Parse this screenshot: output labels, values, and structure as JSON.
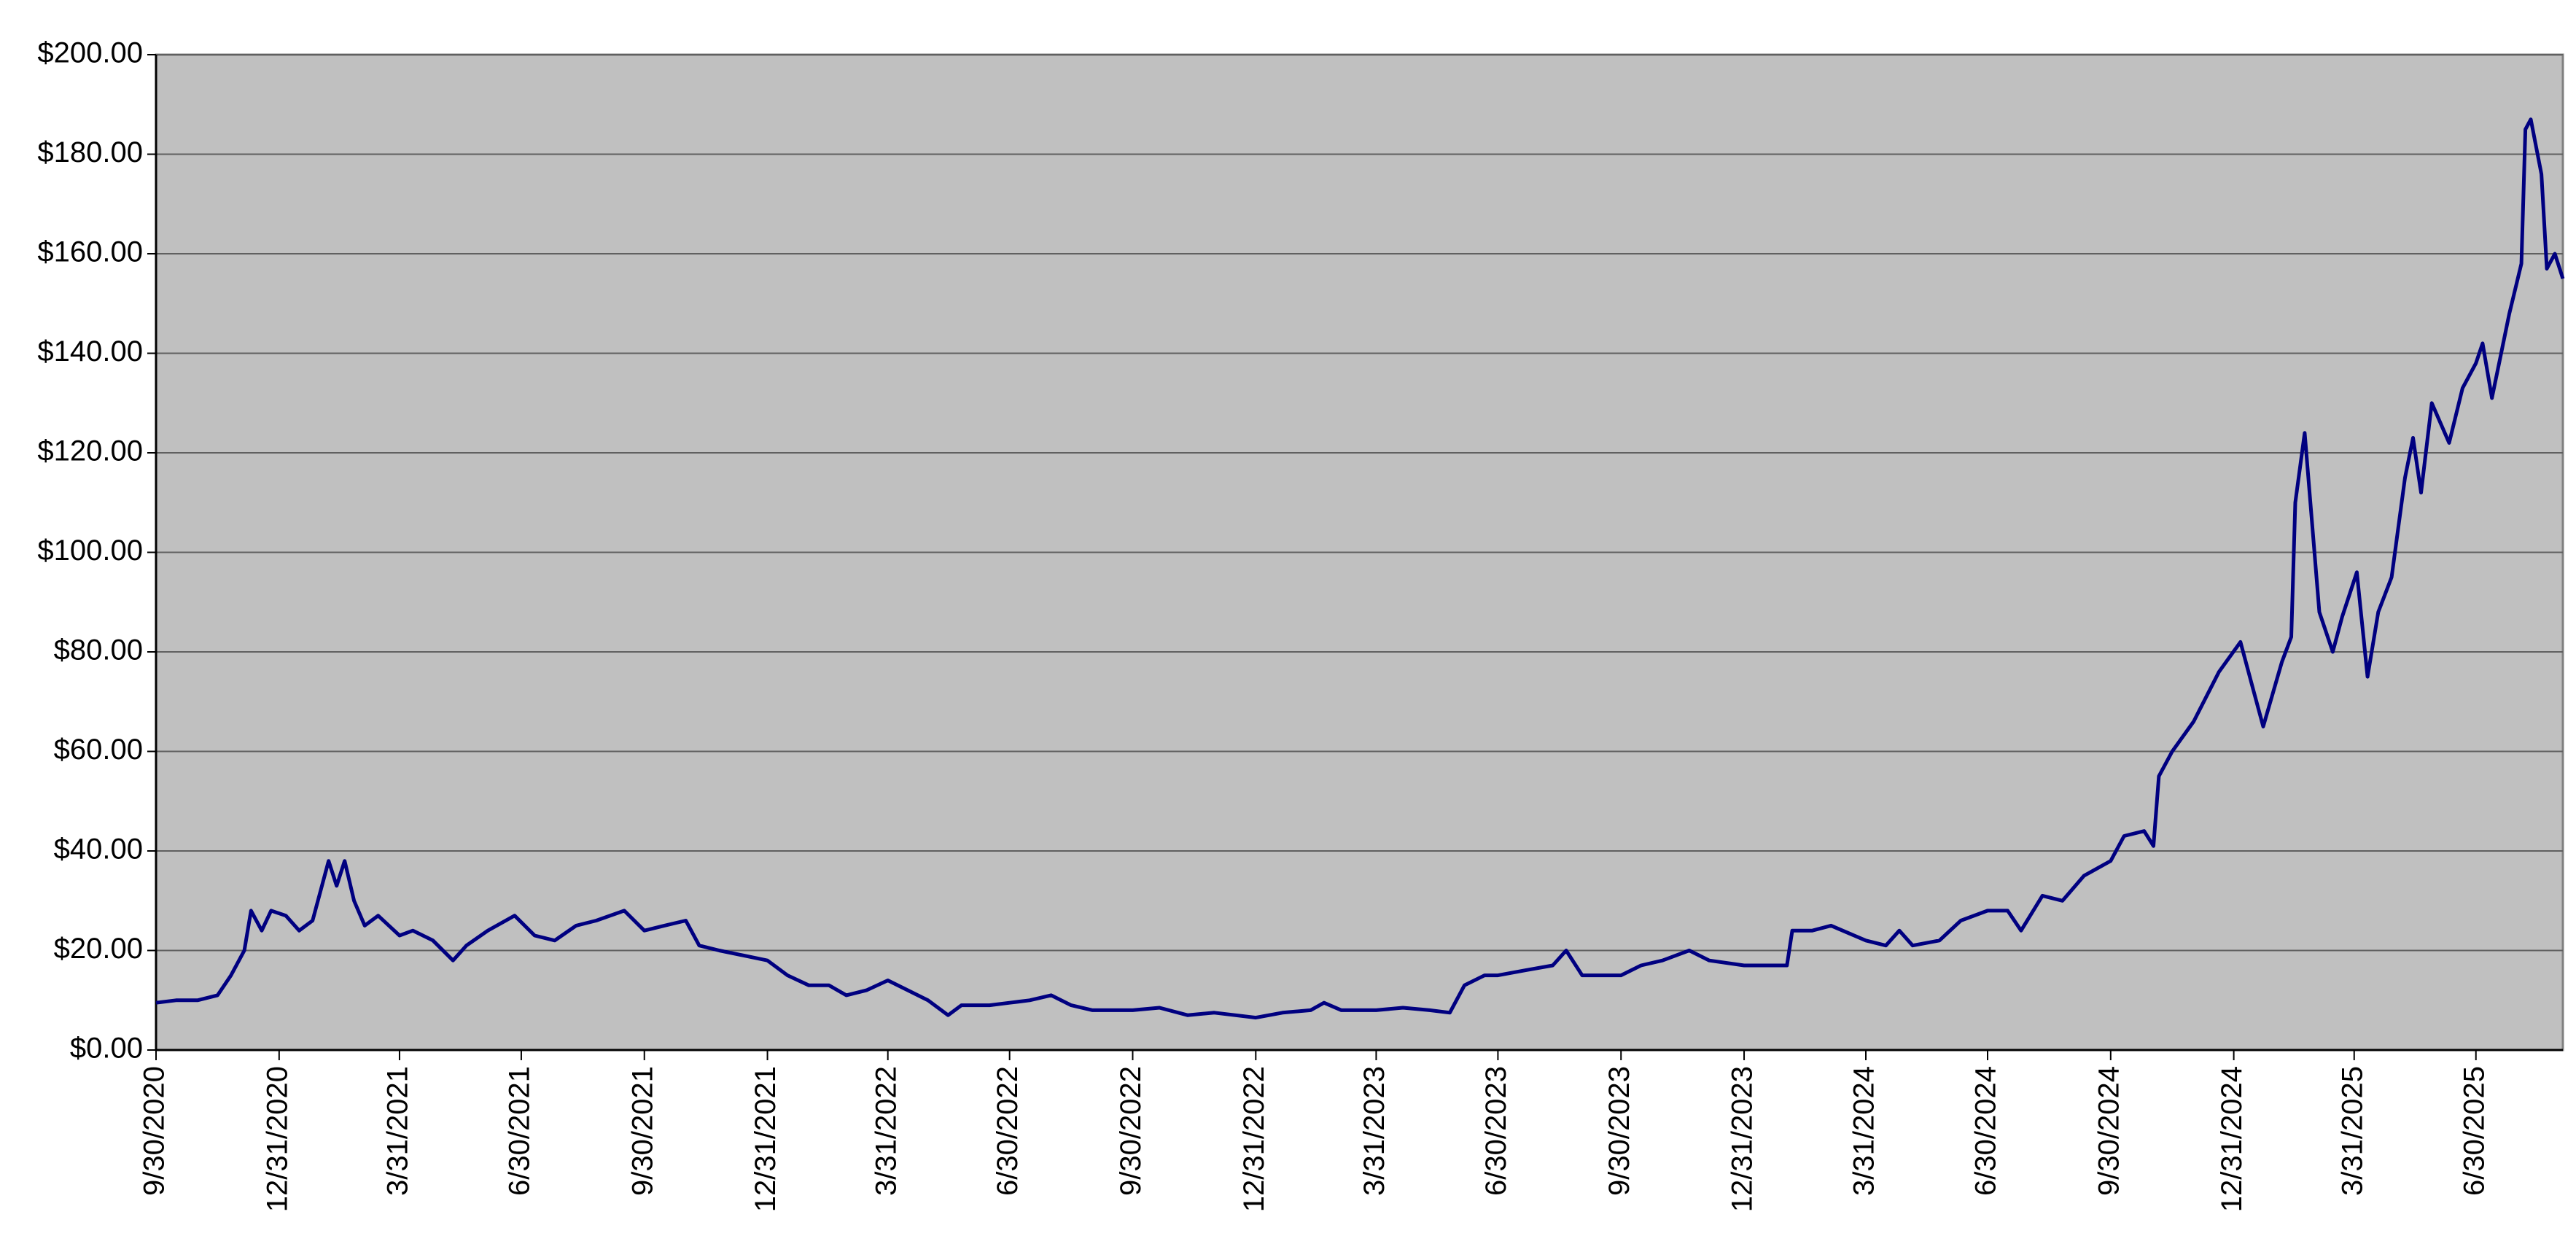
{
  "chart_data": {
    "type": "line",
    "x": [
      "9/30/2020",
      "10/15/2020",
      "10/31/2020",
      "11/15/2020",
      "11/25/2020",
      "12/5/2020",
      "12/10/2020",
      "12/18/2020",
      "12/25/2020",
      "1/5/2021",
      "1/15/2021",
      "1/25/2021",
      "2/3/2021",
      "2/6/2021",
      "2/12/2021",
      "2/18/2021",
      "2/25/2021",
      "3/5/2021",
      "3/15/2021",
      "3/31/2021",
      "4/10/2021",
      "4/25/2021",
      "5/10/2021",
      "5/20/2021",
      "6/5/2021",
      "6/25/2021",
      "7/10/2021",
      "7/25/2021",
      "8/10/2021",
      "8/25/2021",
      "9/15/2021",
      "9/30/2021",
      "10/15/2021",
      "10/31/2021",
      "11/10/2021",
      "11/25/2021",
      "12/31/2021",
      "1/15/2022",
      "1/31/2022",
      "2/15/2022",
      "2/28/2022",
      "3/15/2022",
      "3/31/2022",
      "4/15/2022",
      "4/30/2022",
      "5/15/2022",
      "5/25/2022",
      "6/15/2022",
      "6/30/2022",
      "7/15/2022",
      "7/31/2022",
      "8/15/2022",
      "8/31/2022",
      "9/30/2022",
      "10/20/2022",
      "11/10/2022",
      "11/30/2022",
      "12/31/2022",
      "1/20/2023",
      "2/10/2023",
      "2/20/2023",
      "3/5/2023",
      "3/31/2023",
      "4/20/2023",
      "5/10/2023",
      "5/25/2023",
      "6/5/2023",
      "6/20/2023",
      "6/30/2023",
      "7/20/2023",
      "8/10/2023",
      "8/20/2023",
      "9/1/2023",
      "9/15/2023",
      "9/30/2023",
      "10/15/2023",
      "10/31/2023",
      "11/20/2023",
      "12/5/2023",
      "12/31/2023",
      "1/20/2024",
      "2/1/2024",
      "2/5/2024",
      "2/20/2024",
      "3/5/2024",
      "3/31/2024",
      "4/15/2024",
      "4/25/2024",
      "5/5/2024",
      "5/25/2024",
      "6/10/2024",
      "6/30/2024",
      "7/15/2024",
      "7/25/2024",
      "8/10/2024",
      "8/25/2024",
      "9/10/2024",
      "9/30/2024",
      "10/10/2024",
      "10/25/2024",
      "11/1/2024",
      "11/5/2024",
      "11/15/2024",
      "12/1/2024",
      "12/20/2024",
      "1/5/2025",
      "1/15/2025",
      "1/22/2025",
      "2/5/2025",
      "2/12/2025",
      "2/15/2025",
      "2/22/2025",
      "3/5/2025",
      "3/15/2025",
      "3/22/2025",
      "4/2/2025",
      "4/10/2025",
      "4/18/2025",
      "4/28/2025",
      "5/8/2025",
      "5/14/2025",
      "5/20/2025",
      "5/28/2025",
      "6/10/2025",
      "6/20/2025",
      "6/30/2025",
      "7/5/2025",
      "7/12/2025",
      "7/25/2025",
      "8/3/2025",
      "8/6/2025",
      "8/10/2025",
      "8/18/2025",
      "8/22/2025",
      "8/28/2025",
      "9/3/2025"
    ],
    "values": [
      9.5,
      10,
      10,
      11,
      15,
      20,
      28,
      24,
      28,
      27,
      24,
      26,
      35,
      38,
      33,
      38,
      30,
      25,
      27,
      23,
      24,
      22,
      18,
      21,
      24,
      27,
      23,
      22,
      25,
      26,
      28,
      24,
      25,
      26,
      21,
      20,
      18,
      15,
      13,
      13,
      11,
      12,
      14,
      12,
      10,
      7,
      9,
      9,
      9.5,
      10,
      11,
      9,
      8,
      8,
      8.5,
      7,
      7.5,
      6.5,
      7.5,
      8,
      9.5,
      8,
      8,
      8.5,
      8,
      7.5,
      13,
      15,
      15,
      16,
      17,
      20,
      15,
      15,
      15,
      17,
      18,
      20,
      18,
      17,
      17,
      17,
      24,
      24,
      25,
      22,
      21,
      24,
      21,
      22,
      26,
      28,
      28,
      24,
      31,
      30,
      35,
      38,
      43,
      44,
      41,
      55,
      60,
      66,
      76,
      82,
      72,
      65,
      78,
      83,
      110,
      124,
      88,
      80,
      87,
      96,
      75,
      88,
      95,
      115,
      123,
      112,
      130,
      122,
      133,
      138,
      142,
      131,
      148,
      158,
      185,
      187,
      176,
      157,
      160,
      155
    ],
    "color": "#000080",
    "xlim": [
      "9/30/2020",
      "9/3/2025"
    ],
    "xticks": [
      "9/30/2020",
      "12/31/2020",
      "3/31/2021",
      "6/30/2021",
      "9/30/2021",
      "12/31/2021",
      "3/31/2022",
      "6/30/2022",
      "9/30/2022",
      "12/31/2022",
      "3/31/2023",
      "6/30/2023",
      "9/30/2023",
      "12/31/2023",
      "3/31/2024",
      "6/30/2024",
      "9/30/2024",
      "12/31/2024",
      "3/31/2025",
      "6/30/2025"
    ],
    "ylim": [
      0,
      200
    ],
    "yticks": [
      {
        "value": 0,
        "label": "$0.00"
      },
      {
        "value": 20,
        "label": "$20.00"
      },
      {
        "value": 40,
        "label": "$40.00"
      },
      {
        "value": 60,
        "label": "$60.00"
      },
      {
        "value": 80,
        "label": "$80.00"
      },
      {
        "value": 100,
        "label": "$100.00"
      },
      {
        "value": 120,
        "label": "$120.00"
      },
      {
        "value": 140,
        "label": "$140.00"
      },
      {
        "value": 160,
        "label": "$160.00"
      },
      {
        "value": 180,
        "label": "$180.00"
      },
      {
        "value": 200,
        "label": "$200.00"
      }
    ],
    "grid": true
  }
}
